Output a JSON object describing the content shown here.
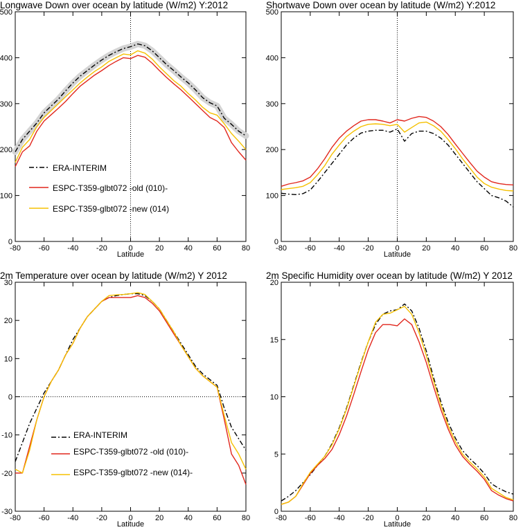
{
  "chart_data": [
    {
      "type": "line",
      "title": "Longwave Down over ocean by latitude (W/m2) Y:2012",
      "xlabel": "Latitude",
      "ylabel": "",
      "xlim": [
        -80,
        80
      ],
      "ylim": [
        0,
        500
      ],
      "xticks": [
        -80,
        -60,
        -40,
        -20,
        0,
        20,
        40,
        60,
        80
      ],
      "yticks": [
        0,
        100,
        200,
        300,
        400,
        500
      ],
      "x": [
        -80,
        -75,
        -70,
        -65,
        -60,
        -55,
        -50,
        -45,
        -40,
        -35,
        -30,
        -25,
        -20,
        -15,
        -10,
        -5,
        0,
        5,
        10,
        15,
        20,
        25,
        30,
        35,
        40,
        45,
        50,
        55,
        60,
        65,
        70,
        75,
        80
      ],
      "series": [
        {
          "name": "ERA-INTERIM",
          "color": "#000000",
          "dash": "dashdot",
          "shade": true,
          "values": [
            195,
            222,
            240,
            258,
            280,
            295,
            310,
            328,
            345,
            360,
            372,
            384,
            395,
            405,
            413,
            420,
            424,
            430,
            426,
            415,
            400,
            385,
            372,
            358,
            345,
            330,
            313,
            302,
            295,
            268,
            255,
            240,
            230
          ]
        },
        {
          "name": "ESPC-T359-glbt072 -old (010)-",
          "color": "#e1261c",
          "dash": "solid",
          "values": [
            163,
            195,
            208,
            240,
            262,
            276,
            290,
            305,
            322,
            338,
            350,
            362,
            372,
            383,
            392,
            400,
            398,
            405,
            401,
            388,
            372,
            357,
            343,
            330,
            315,
            300,
            285,
            270,
            262,
            248,
            215,
            195,
            177
          ]
        },
        {
          "name": "ESPC-T359-glbt072 -new (014)",
          "color": "#f5c000",
          "dash": "solid",
          "values": [
            172,
            205,
            222,
            250,
            270,
            285,
            300,
            315,
            330,
            345,
            358,
            370,
            380,
            392,
            400,
            408,
            406,
            415,
            410,
            397,
            380,
            365,
            350,
            338,
            322,
            308,
            292,
            280,
            275,
            256,
            235,
            218,
            200
          ]
        }
      ],
      "legend": "lower-left",
      "zero_line": "vertical"
    },
    {
      "type": "line",
      "title": "Shortwave Down over ocean by latitude (W/m2) Y:2012",
      "xlabel": "Latitude",
      "ylabel": "",
      "xlim": [
        -80,
        80
      ],
      "ylim": [
        0,
        500
      ],
      "xticks": [
        -80,
        -60,
        -40,
        -20,
        0,
        20,
        40,
        60,
        80
      ],
      "yticks": [
        0,
        100,
        200,
        300,
        400,
        500
      ],
      "x": [
        -80,
        -75,
        -70,
        -65,
        -60,
        -55,
        -50,
        -45,
        -40,
        -35,
        -30,
        -25,
        -20,
        -15,
        -10,
        -5,
        0,
        5,
        10,
        15,
        20,
        25,
        30,
        35,
        40,
        45,
        50,
        55,
        60,
        65,
        70,
        75,
        80
      ],
      "series": [
        {
          "name": "ERA-INTERIM",
          "color": "#000000",
          "dash": "dashdot",
          "values": [
            105,
            103,
            102,
            104,
            112,
            130,
            150,
            170,
            190,
            210,
            225,
            236,
            240,
            242,
            242,
            238,
            245,
            218,
            235,
            240,
            240,
            235,
            225,
            210,
            190,
            170,
            150,
            130,
            115,
            100,
            95,
            88,
            75
          ]
        },
        {
          "name": "ESPC-T359-glbt072 -old (010)-",
          "color": "#e1261c",
          "dash": "solid",
          "values": [
            120,
            125,
            128,
            132,
            140,
            158,
            180,
            205,
            225,
            240,
            252,
            262,
            265,
            265,
            262,
            258,
            265,
            262,
            268,
            272,
            270,
            262,
            250,
            233,
            212,
            192,
            172,
            153,
            140,
            130,
            126,
            124,
            123
          ]
        },
        {
          "name": "ESPC-T359-glbt072 -new (014)",
          "color": "#f5c000",
          "dash": "solid",
          "values": [
            113,
            115,
            117,
            120,
            128,
            145,
            165,
            190,
            210,
            228,
            240,
            250,
            255,
            256,
            255,
            252,
            255,
            238,
            248,
            258,
            260,
            252,
            240,
            222,
            202,
            180,
            160,
            140,
            126,
            118,
            114,
            111,
            110
          ]
        }
      ],
      "zero_line": "vertical"
    },
    {
      "type": "line",
      "title": "2m Temperature over ocean by latitude (W/m2) Y 2012",
      "xlabel": "Latitude",
      "ylabel": "",
      "xlim": [
        -80,
        80
      ],
      "ylim": [
        -30,
        30
      ],
      "xticks": [
        -80,
        -60,
        -40,
        -20,
        0,
        20,
        40,
        60,
        80
      ],
      "yticks": [
        -30,
        -20,
        -10,
        0,
        10,
        20,
        30
      ],
      "x": [
        -80,
        -75,
        -70,
        -65,
        -60,
        -55,
        -50,
        -45,
        -40,
        -35,
        -30,
        -25,
        -20,
        -15,
        -10,
        -5,
        0,
        5,
        10,
        15,
        20,
        25,
        30,
        35,
        40,
        45,
        50,
        55,
        60,
        65,
        70,
        75,
        80
      ],
      "series": [
        {
          "name": "ERA-INTERIM",
          "color": "#000000",
          "dash": "dashdot",
          "values": [
            -17,
            -12,
            -7,
            -3,
            1,
            4,
            7,
            11,
            15,
            18,
            21,
            23,
            25,
            26,
            26.5,
            26.8,
            27,
            27,
            26.5,
            25,
            23,
            20,
            17,
            14,
            11,
            8,
            6,
            4.5,
            3,
            -3,
            -8,
            -11,
            -14
          ]
        },
        {
          "name": "ESPC-T359-glbt072 -old (010)-",
          "color": "#e1261c",
          "dash": "solid",
          "values": [
            -20,
            -20,
            -13,
            -6,
            0,
            4,
            7,
            11,
            14,
            18,
            21,
            23,
            25,
            26,
            26,
            26,
            26,
            26.5,
            26,
            24.5,
            22.5,
            19.5,
            16.5,
            13.5,
            10.5,
            7.5,
            5.5,
            4,
            2.5,
            -6,
            -15,
            -18,
            -23
          ]
        },
        {
          "name": "ESPC-T359-glbt072 -new (014)-",
          "color": "#f5c000",
          "dash": "solid",
          "values": [
            -19,
            -20,
            -14,
            -6,
            0,
            4,
            7,
            11,
            14,
            18,
            21,
            23,
            25,
            26.5,
            26.7,
            26.8,
            27,
            27.3,
            26.8,
            25,
            23,
            20,
            17,
            13.5,
            10.5,
            7.5,
            5.5,
            4,
            2.5,
            -5,
            -12,
            -15,
            -19
          ]
        }
      ],
      "legend": "lower-left",
      "zero_line": "horizontal"
    },
    {
      "type": "line",
      "title": "2m Specific Humidity over ocean by latitude (W/m2) Y 2012",
      "xlabel": "Latitude",
      "ylabel": "",
      "xlim": [
        -80,
        80
      ],
      "ylim": [
        0,
        20
      ],
      "xticks": [
        -80,
        -60,
        -40,
        -20,
        0,
        20,
        40,
        60,
        80
      ],
      "yticks": [
        0,
        5,
        10,
        15,
        20
      ],
      "x": [
        -80,
        -75,
        -70,
        -65,
        -60,
        -55,
        -50,
        -45,
        -40,
        -35,
        -30,
        -25,
        -20,
        -15,
        -10,
        -5,
        0,
        5,
        10,
        15,
        20,
        25,
        30,
        35,
        40,
        45,
        50,
        55,
        60,
        65,
        70,
        75,
        80
      ],
      "series": [
        {
          "name": "ERA-INTERIM",
          "color": "#000000",
          "dash": "dashdot",
          "values": [
            0.9,
            1.3,
            1.8,
            2.5,
            3.2,
            4,
            4.8,
            5.9,
            7.3,
            9,
            11,
            13,
            14.8,
            16.3,
            17.2,
            17.5,
            17.6,
            18.1,
            17.5,
            16,
            14,
            11.7,
            9.6,
            7.8,
            6.4,
            5.3,
            4.6,
            4,
            3.3,
            2.4,
            2,
            1.7,
            1.5
          ]
        },
        {
          "name": "ESPC-T359-glbt072 -old (010)-",
          "color": "#e1261c",
          "dash": "solid",
          "values": [
            0.6,
            0.8,
            1.3,
            2.3,
            3.3,
            4,
            4.6,
            5.4,
            6.7,
            8.3,
            10.2,
            12.2,
            14.1,
            15.6,
            16.3,
            16.3,
            16.2,
            16.8,
            16.3,
            14.8,
            13,
            10.9,
            8.9,
            7.2,
            5.8,
            4.8,
            4.1,
            3.5,
            2.8,
            1.8,
            1.4,
            1.1,
            0.9
          ]
        },
        {
          "name": "ESPC-T359-glbt072 -new (014)",
          "color": "#f5c000",
          "dash": "solid",
          "values": [
            0.6,
            0.8,
            1.3,
            2.4,
            3.4,
            4.1,
            4.8,
            5.8,
            7.2,
            8.9,
            10.9,
            12.9,
            14.8,
            16.5,
            17.2,
            17.3,
            17.6,
            17.9,
            17.2,
            15.6,
            13.6,
            11.4,
            9.3,
            7.5,
            6.1,
            5.0,
            4.3,
            3.7,
            3.0,
            2.0,
            1.6,
            1.2,
            1.0
          ]
        }
      ]
    }
  ]
}
